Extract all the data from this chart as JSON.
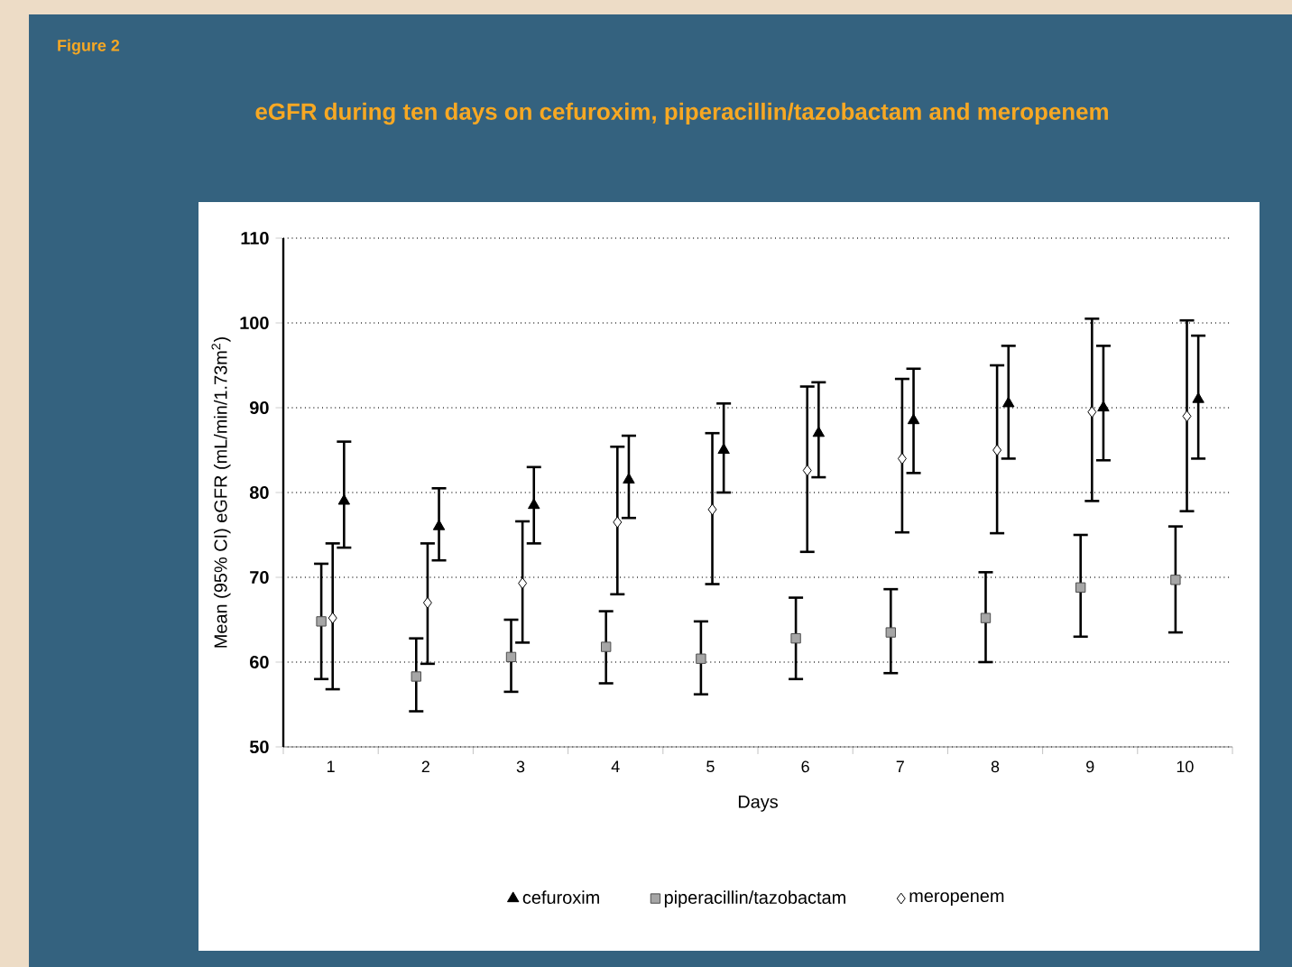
{
  "chart_data": {
    "type": "scatter",
    "title": "eGFR during ten days on cefuroxim, piperacillin/tazobactam and meropenem",
    "annotations": [
      "Figure 2"
    ],
    "xlabel": "Days",
    "ylabel": "Mean (95% CI) eGFR (mL/min/1.73m$^{2}$)",
    "categories": [
      "1",
      "2",
      "3",
      "4",
      "5",
      "6",
      "7",
      "8",
      "9",
      "10"
    ],
    "ylim": [
      50,
      110
    ],
    "yticks": [
      50,
      60,
      70,
      80,
      90,
      100,
      110
    ],
    "grid": "y",
    "legend": "bottom",
    "series": [
      {
        "name": "cefuroxim",
        "color": "#000000",
        "marker": "triangle",
        "values": [
          79,
          76,
          78.5,
          81.5,
          85,
          87,
          88.5,
          90.5,
          90,
          91
        ],
        "errors": [
          [
            73.5,
            86
          ],
          [
            72,
            80.5
          ],
          [
            74,
            83
          ],
          [
            77,
            86.7
          ],
          [
            80,
            90.5
          ],
          [
            81.8,
            93
          ],
          [
            82.3,
            94.6
          ],
          [
            84,
            97.3
          ],
          [
            83.8,
            97.3
          ],
          [
            84,
            98.5
          ]
        ]
      },
      {
        "name": "piperacillin/tazobactam",
        "color": "#a6a6a6",
        "marker": "square",
        "values": [
          64.8,
          58.3,
          60.6,
          61.8,
          60.4,
          62.8,
          63.5,
          65.2,
          68.8,
          69.7
        ],
        "errors": [
          [
            58,
            71.6
          ],
          [
            54.2,
            62.8
          ],
          [
            56.5,
            65
          ],
          [
            57.5,
            66
          ],
          [
            56.2,
            64.8
          ],
          [
            58,
            67.6
          ],
          [
            58.7,
            68.6
          ],
          [
            60,
            70.6
          ],
          [
            63,
            75
          ],
          [
            63.5,
            76
          ]
        ]
      },
      {
        "name": "meropenem",
        "color": "#ffffff",
        "marker": "diamond",
        "values": [
          65.2,
          67,
          69.3,
          76.5,
          78,
          82.6,
          84,
          85,
          89.5,
          89
        ],
        "errors": [
          [
            56.8,
            74
          ],
          [
            59.8,
            74
          ],
          [
            62.3,
            76.6
          ],
          [
            68,
            85.4
          ],
          [
            69.2,
            87
          ],
          [
            73,
            92.5
          ],
          [
            75.3,
            93.4
          ],
          [
            75.2,
            95
          ],
          [
            79,
            100.5
          ],
          [
            77.8,
            100.3
          ]
        ]
      }
    ]
  }
}
